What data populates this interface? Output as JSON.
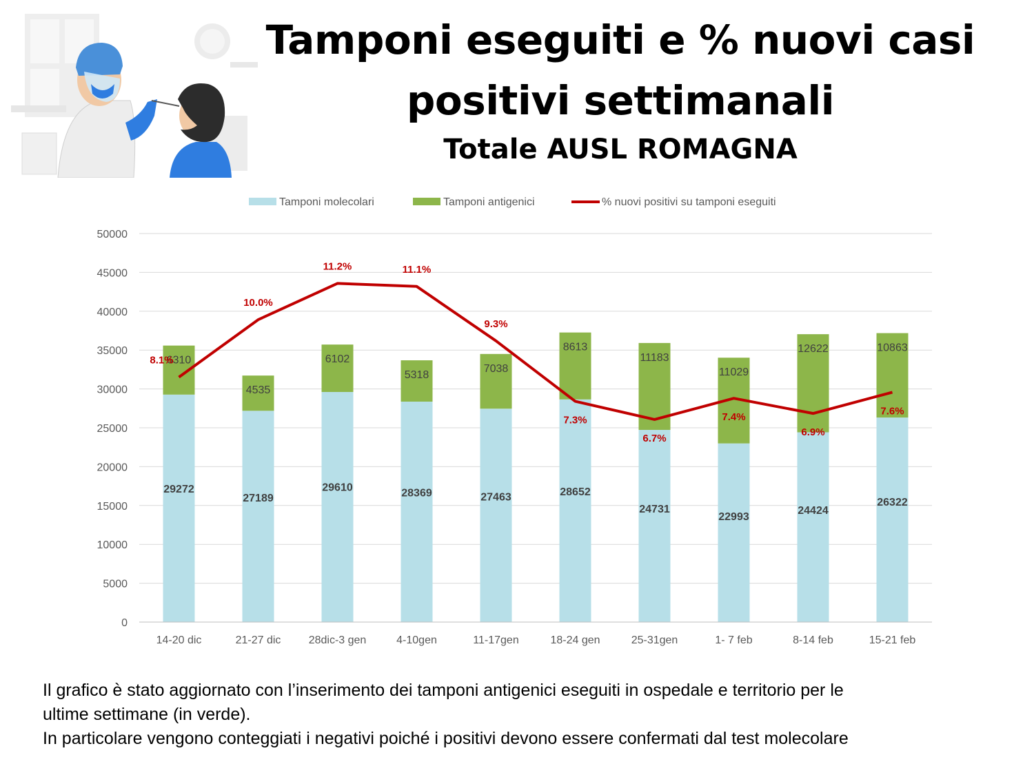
{
  "title": {
    "line1": "Tamponi eseguiti e % nuovi casi",
    "line2": "positivi settimanali",
    "subtitle": "Totale AUSL ROMAGNA"
  },
  "colors": {
    "molecular": "#b7dfe8",
    "antigenic": "#8db64a",
    "line": "#c00000",
    "grid": "#d9d9d9",
    "axis_text": "#595959"
  },
  "chart_data": {
    "type": "bar",
    "stacked": true,
    "categories": [
      "14-20 dic",
      "21-27 dic",
      "28dic-3 gen",
      "4-10gen",
      "11-17gen",
      "18-24 gen",
      "25-31gen",
      "1- 7 feb",
      "8-14 feb",
      "15-21 feb"
    ],
    "series": [
      {
        "name": "Tamponi molecolari",
        "type": "bar",
        "values": [
          29272,
          27189,
          29610,
          28369,
          27463,
          28652,
          24731,
          22993,
          24424,
          26322
        ]
      },
      {
        "name": "Tamponi antigenici",
        "type": "bar",
        "values": [
          6310,
          4535,
          6102,
          5318,
          7038,
          8613,
          11183,
          11029,
          12622,
          10863
        ]
      },
      {
        "name": "% nuovi positivi su tamponi eseguiti",
        "type": "line",
        "values": [
          8.1,
          10.0,
          11.2,
          11.1,
          9.3,
          7.3,
          6.7,
          7.4,
          6.9,
          7.6
        ],
        "labels": [
          "8.1%",
          "10.0%",
          "11.2%",
          "11.1%",
          "9.3%",
          "7.3%",
          "6.7%",
          "7.4%",
          "6.9%",
          "7.6%"
        ]
      }
    ],
    "ylim": [
      0,
      50000
    ],
    "yticks": [
      0,
      5000,
      10000,
      15000,
      20000,
      25000,
      30000,
      35000,
      40000,
      45000,
      50000
    ],
    "y2lim": [
      0,
      12.85
    ],
    "grid": true,
    "legend_position": "top"
  },
  "footnote": {
    "line1": "Il grafico è stato aggiornato con l’inserimento dei tamponi antigenici eseguiti in ospedale e territorio per le",
    "line2": "ultime settimane (in verde).",
    "line3": "In particolare vengono conteggiati i negativi poiché i positivi devono essere confermati dal test molecolare"
  }
}
